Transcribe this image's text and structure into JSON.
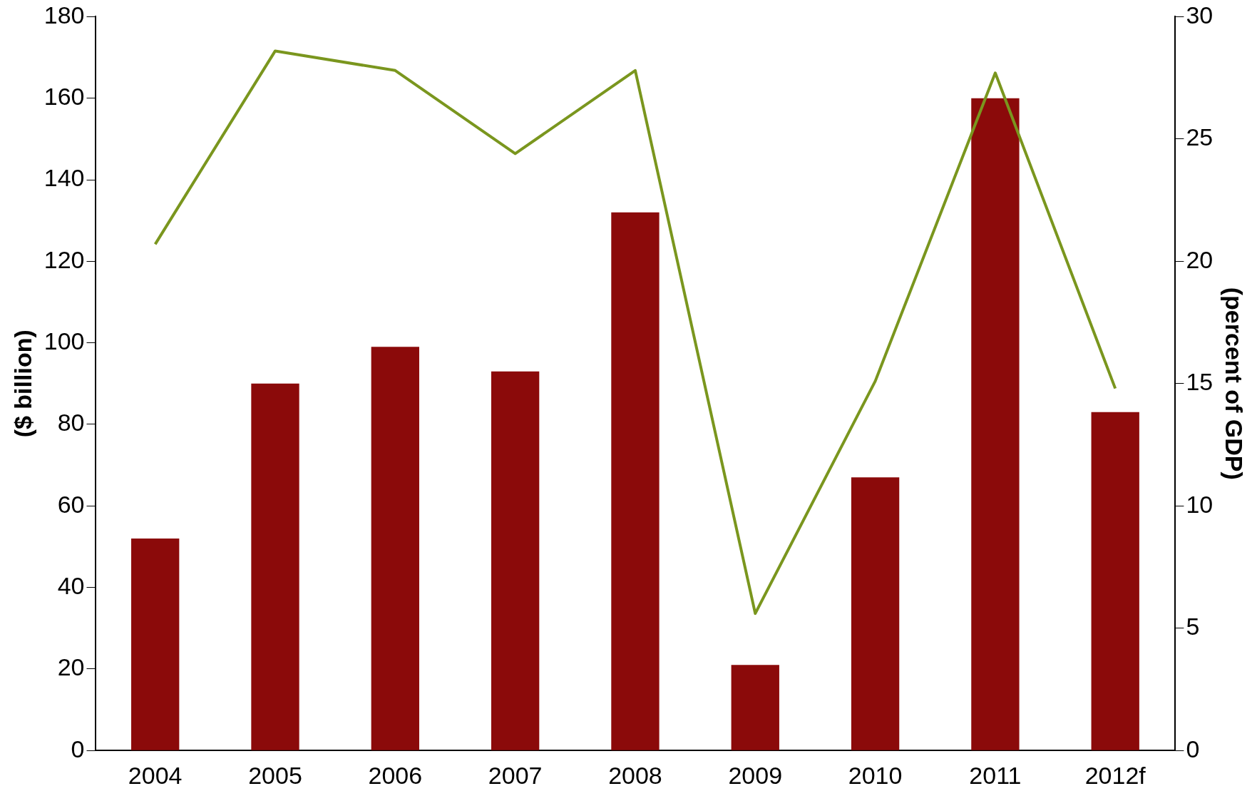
{
  "chart_data": {
    "type": "bar",
    "ylabel": "($ billion)",
    "y2label": "(percent of GDP)",
    "categories": [
      "2004",
      "2005",
      "2006",
      "2007",
      "2008",
      "2009",
      "2010",
      "2011",
      "2012f"
    ],
    "series": [
      {
        "color": "#8b0a0a",
        "values": [
          52,
          90,
          99,
          93,
          132,
          21,
          67,
          160,
          83
        ]
      },
      {
        "type": "line",
        "axis": "y2",
        "color": "#7a961e",
        "values": [
          20.7,
          28.6,
          27.8,
          24.4,
          27.8,
          5.6,
          15.1,
          27.7,
          14.8
        ]
      }
    ],
    "ylim": [
      0,
      180
    ],
    "yticks": [
      0,
      20,
      40,
      60,
      80,
      100,
      120,
      140,
      160,
      180
    ],
    "y2lim": [
      0,
      30
    ],
    "y2ticks": [
      0,
      5,
      10,
      15,
      20,
      25,
      30
    ],
    "grid": false,
    "legend": false,
    "marker": "none"
  }
}
